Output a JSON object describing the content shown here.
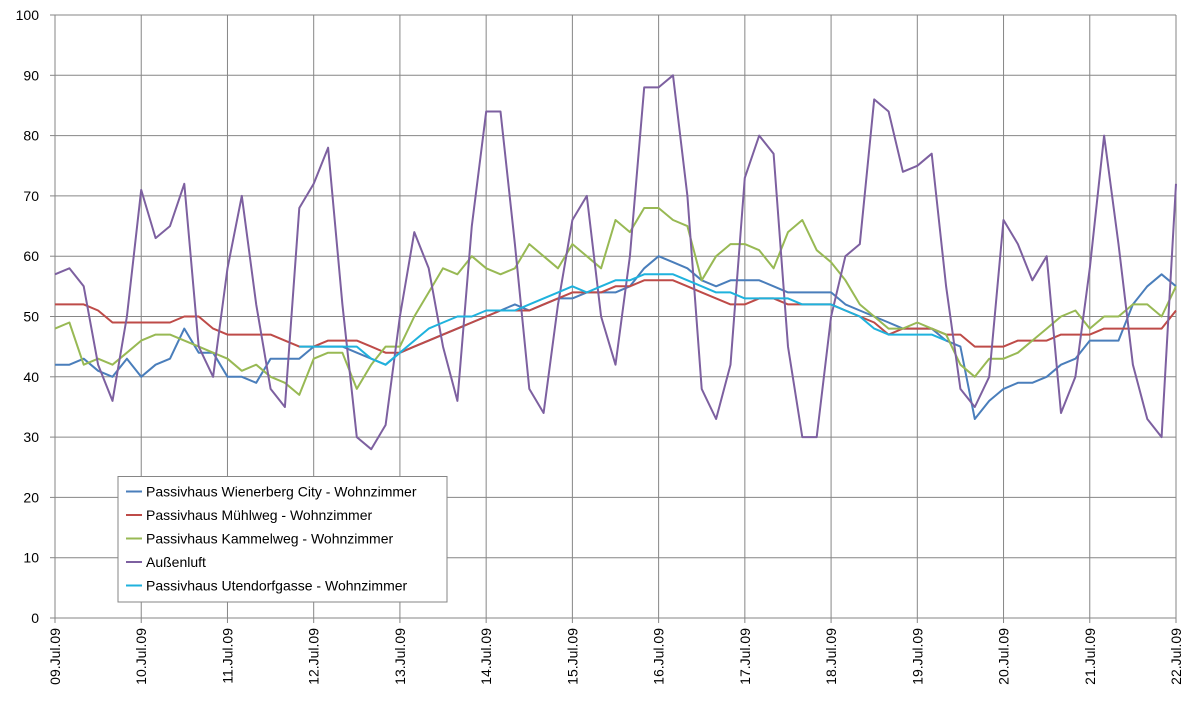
{
  "chart_data": {
    "type": "line",
    "x": [
      0,
      4,
      8,
      12,
      16,
      20,
      24,
      28,
      32,
      36,
      40,
      44,
      48,
      52,
      56,
      60,
      64,
      68,
      72,
      76,
      80,
      84,
      88,
      92,
      96,
      100,
      104,
      108,
      112,
      116,
      120,
      124,
      128,
      132,
      136,
      140,
      144,
      148,
      152,
      156,
      160,
      164,
      168,
      172,
      176,
      180,
      184,
      188,
      192,
      196,
      200,
      204,
      208,
      212,
      216,
      220,
      224,
      228,
      232,
      236,
      240,
      244,
      248,
      252,
      256,
      260,
      264,
      268,
      272,
      276,
      280,
      284,
      288,
      292,
      296,
      300,
      304,
      308,
      312
    ],
    "xlim": [
      0,
      312
    ],
    "xticks": [
      {
        "value": 0,
        "label": "09.Jul.09"
      },
      {
        "value": 24,
        "label": "10.Jul.09"
      },
      {
        "value": 48,
        "label": "11.Jul.09"
      },
      {
        "value": 72,
        "label": "12.Jul.09"
      },
      {
        "value": 96,
        "label": "13.Jul.09"
      },
      {
        "value": 120,
        "label": "14.Jul.09"
      },
      {
        "value": 144,
        "label": "15.Jul.09"
      },
      {
        "value": 168,
        "label": "16.Jul.09"
      },
      {
        "value": 192,
        "label": "17.Jul.09"
      },
      {
        "value": 216,
        "label": "18.Jul.09"
      },
      {
        "value": 240,
        "label": "19.Jul.09"
      },
      {
        "value": 264,
        "label": "20.Jul.09"
      },
      {
        "value": 288,
        "label": "21.Jul.09"
      },
      {
        "value": 312,
        "label": "22.Jul.09"
      }
    ],
    "ylim": [
      0,
      100
    ],
    "yticks": [
      0,
      10,
      20,
      30,
      40,
      50,
      60,
      70,
      80,
      90,
      100
    ],
    "grid": true,
    "legend": "lower-left",
    "series": [
      {
        "name": "Passivhaus Wienerberg City - Wohnzimmer",
        "color": "#4a7ebb",
        "values": [
          42,
          42,
          43,
          41,
          40,
          43,
          40,
          42,
          43,
          48,
          44,
          44,
          40,
          40,
          39,
          43,
          43,
          43,
          45,
          45,
          45,
          44,
          43,
          42,
          44,
          45,
          46,
          47,
          48,
          49,
          50,
          51,
          52,
          51,
          52,
          53,
          53,
          54,
          54,
          54,
          55,
          58,
          60,
          59,
          58,
          56,
          55,
          56,
          56,
          56,
          55,
          54,
          54,
          54,
          54,
          52,
          51,
          50,
          49,
          48,
          48,
          48,
          46,
          45,
          33,
          36,
          38,
          39,
          39,
          40,
          42,
          43,
          46,
          46,
          46,
          52,
          55,
          57,
          55
        ]
      },
      {
        "name": "Passivhaus Mühlweg - Wohnzimmer",
        "color": "#be4b48",
        "values": [
          52,
          52,
          52,
          51,
          49,
          49,
          49,
          49,
          49,
          50,
          50,
          48,
          47,
          47,
          47,
          47,
          46,
          45,
          45,
          46,
          46,
          46,
          45,
          44,
          44,
          45,
          46,
          47,
          48,
          49,
          50,
          51,
          51,
          51,
          52,
          53,
          54,
          54,
          54,
          55,
          55,
          56,
          56,
          56,
          55,
          54,
          53,
          52,
          52,
          53,
          53,
          52,
          52,
          52,
          52,
          51,
          50,
          49,
          47,
          48,
          48,
          48,
          47,
          47,
          45,
          45,
          45,
          46,
          46,
          46,
          47,
          47,
          47,
          48,
          48,
          48,
          48,
          48,
          51
        ]
      },
      {
        "name": "Passivhaus Kammelweg - Wohnzimmer",
        "color": "#98b954",
        "values": [
          48,
          49,
          42,
          43,
          42,
          44,
          46,
          47,
          47,
          46,
          45,
          44,
          43,
          41,
          42,
          40,
          39,
          37,
          43,
          44,
          44,
          38,
          42,
          45,
          45,
          50,
          54,
          58,
          57,
          60,
          58,
          57,
          58,
          62,
          60,
          58,
          62,
          60,
          58,
          66,
          64,
          68,
          68,
          66,
          65,
          56,
          60,
          62,
          62,
          61,
          58,
          64,
          66,
          61,
          59,
          56,
          52,
          50,
          48,
          48,
          49,
          48,
          47,
          42,
          40,
          43,
          43,
          44,
          46,
          48,
          50,
          51,
          48,
          50,
          50,
          52,
          52,
          50,
          55
        ]
      },
      {
        "name": "Außenluft",
        "color": "#7d60a0",
        "values": [
          57,
          58,
          55,
          42,
          36,
          50,
          71,
          63,
          65,
          72,
          45,
          40,
          58,
          70,
          52,
          38,
          35,
          68,
          72,
          78,
          52,
          30,
          28,
          32,
          50,
          64,
          58,
          45,
          36,
          65,
          84,
          84,
          62,
          38,
          34,
          52,
          66,
          70,
          50,
          42,
          60,
          88,
          88,
          90,
          70,
          38,
          33,
          42,
          73,
          80,
          77,
          45,
          30,
          30,
          50,
          60,
          62,
          86,
          84,
          74,
          75,
          77,
          55,
          38,
          35,
          40,
          66,
          62,
          56,
          60,
          34,
          40,
          58,
          80,
          62,
          42,
          33,
          30,
          72
        ]
      },
      {
        "name": "Passivhaus Utendorfgasse - Wohnzimmer",
        "color": "#1fb2dd",
        "values": [
          null,
          null,
          null,
          null,
          null,
          null,
          null,
          null,
          null,
          null,
          null,
          null,
          null,
          null,
          null,
          null,
          null,
          45,
          45,
          45,
          45,
          45,
          43,
          42,
          44,
          46,
          48,
          49,
          50,
          50,
          51,
          51,
          51,
          52,
          53,
          54,
          55,
          54,
          55,
          56,
          56,
          57,
          57,
          57,
          56,
          55,
          54,
          54,
          53,
          53,
          53,
          53,
          52,
          52,
          52,
          51,
          50,
          48,
          47,
          47,
          47,
          47,
          46,
          null,
          null,
          null,
          null,
          null,
          null,
          null,
          null,
          null,
          null,
          null,
          null,
          null,
          null,
          null,
          null
        ]
      }
    ]
  }
}
